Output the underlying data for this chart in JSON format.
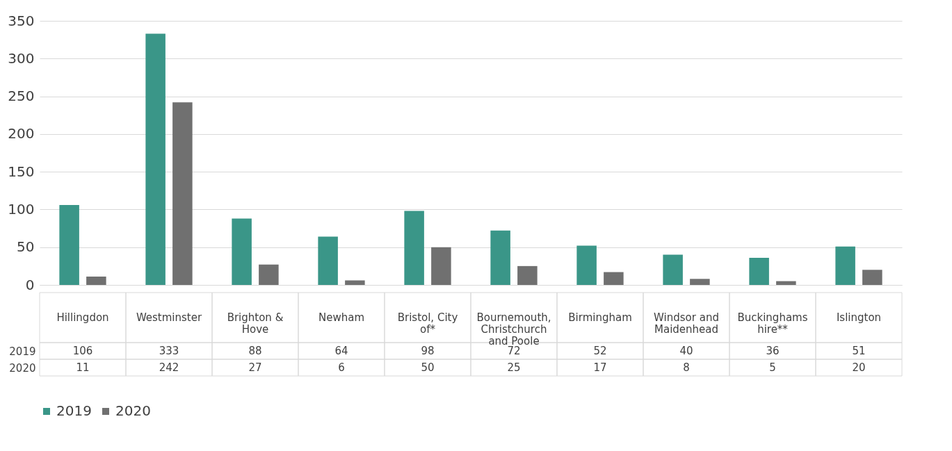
{
  "chart_data": {
    "type": "bar",
    "categories": [
      "Hillingdon",
      "Westminster",
      "Brighton & Hove",
      "Newham",
      "Bristol, City of*",
      "Bournemouth, Christchurch and Poole",
      "Birmingham",
      "Windsor and Maidenhead",
      "Buckinghamshire**",
      "Islington"
    ],
    "series": [
      {
        "name": "2019",
        "color": "#3a9688",
        "values": [
          106,
          333,
          88,
          64,
          98,
          72,
          52,
          40,
          36,
          51
        ]
      },
      {
        "name": "2020",
        "color": "#707070",
        "values": [
          11,
          242,
          27,
          6,
          50,
          25,
          17,
          8,
          5,
          20
        ]
      }
    ],
    "ylim": [
      0,
      350
    ],
    "yticks": [
      0,
      50,
      100,
      150,
      200,
      250,
      300,
      350
    ],
    "grid": "y",
    "legend": "bottom",
    "data_labels": true
  }
}
